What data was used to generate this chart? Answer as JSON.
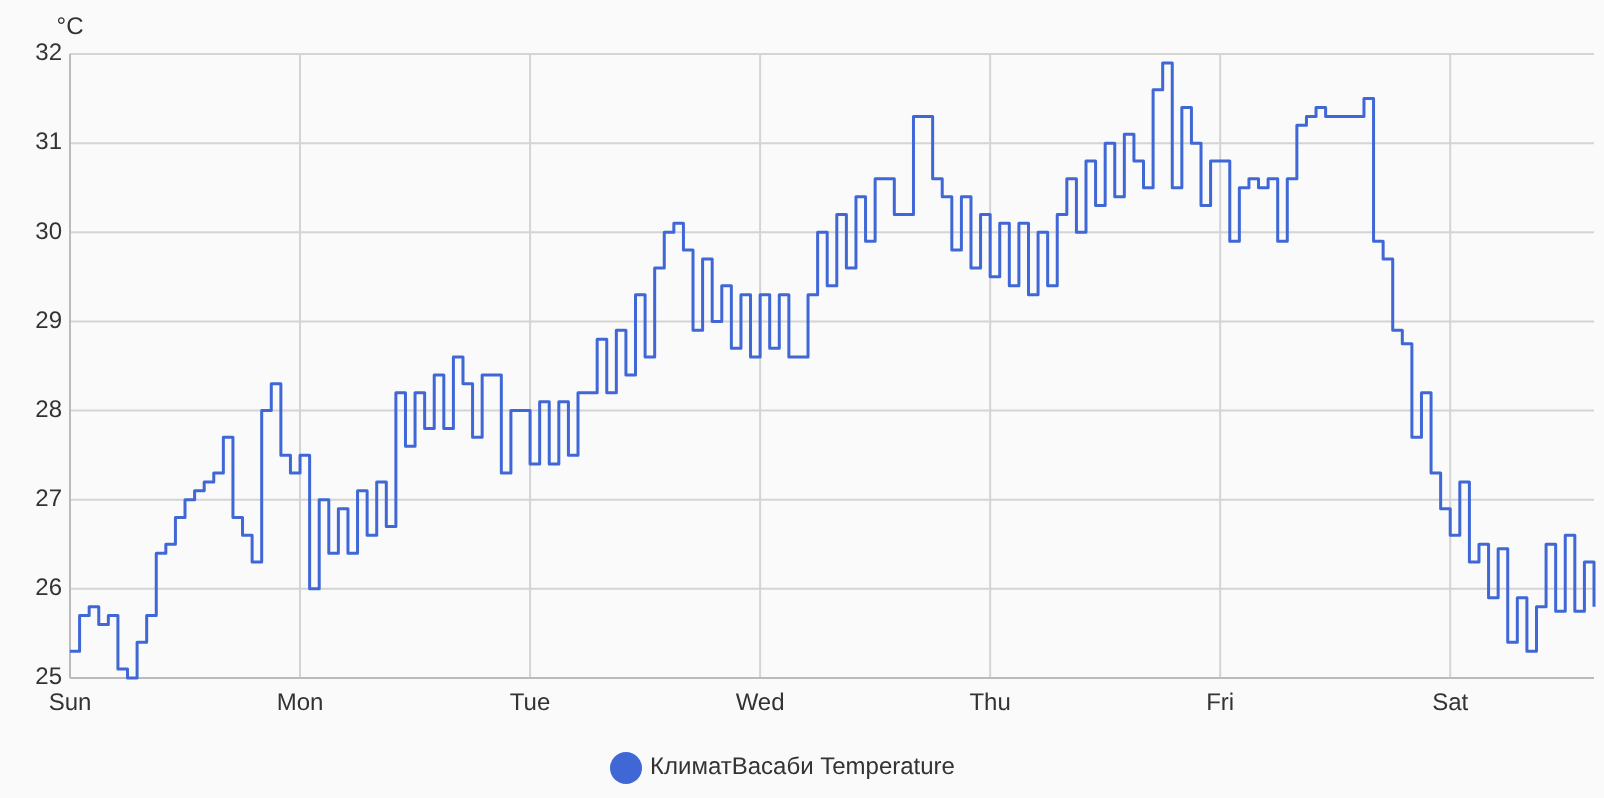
{
  "chart_data": {
    "type": "step",
    "ylabel": "°C",
    "legend": "bottom",
    "grid": true,
    "marker": "none",
    "line_style": "solid",
    "categories": [
      "Sun",
      null,
      null,
      null,
      null,
      null,
      null,
      null,
      null,
      null,
      null,
      null,
      null,
      null,
      null,
      null,
      null,
      null,
      null,
      null,
      null,
      null,
      null,
      null,
      "Mon",
      null,
      null,
      null,
      null,
      null,
      null,
      null,
      null,
      null,
      null,
      null,
      null,
      null,
      null,
      null,
      null,
      null,
      null,
      null,
      null,
      null,
      null,
      null,
      "Tue",
      null,
      null,
      null,
      null,
      null,
      null,
      null,
      null,
      null,
      null,
      null,
      null,
      null,
      null,
      null,
      null,
      null,
      null,
      null,
      null,
      null,
      null,
      null,
      "Wed",
      null,
      null,
      null,
      null,
      null,
      null,
      null,
      null,
      null,
      null,
      null,
      null,
      null,
      null,
      null,
      null,
      null,
      null,
      null,
      null,
      null,
      null,
      null,
      "Thu",
      null,
      null,
      null,
      null,
      null,
      null,
      null,
      null,
      null,
      null,
      null,
      null,
      null,
      null,
      null,
      null,
      null,
      null,
      null,
      null,
      null,
      null,
      null,
      "Fri",
      null,
      null,
      null,
      null,
      null,
      null,
      null,
      null,
      null,
      null,
      null,
      null,
      null,
      null,
      null,
      null,
      null,
      null,
      null,
      null,
      null,
      null,
      null,
      "Sat",
      null,
      null,
      null,
      null,
      null,
      null,
      null,
      null,
      null,
      null,
      null,
      null,
      null,
      null,
      null
    ],
    "ylim": [
      25,
      32
    ],
    "yticks": [
      25,
      26,
      27,
      28,
      29,
      30,
      31,
      32
    ],
    "series": [
      {
        "name": "КлиматВасаби Temperature",
        "color": "#3f67d6",
        "values": [
          25.3,
          25.7,
          25.8,
          25.6,
          25.7,
          25.1,
          25.0,
          25.4,
          25.7,
          26.4,
          26.5,
          26.8,
          27.0,
          27.1,
          27.2,
          27.3,
          27.7,
          26.8,
          26.6,
          26.3,
          28.0,
          28.3,
          27.5,
          27.3,
          27.5,
          26.0,
          27.0,
          26.4,
          26.9,
          26.4,
          27.1,
          26.6,
          27.2,
          26.7,
          28.2,
          27.6,
          28.2,
          27.8,
          28.4,
          27.8,
          28.6,
          28.3,
          27.7,
          28.4,
          28.4,
          27.3,
          28.0,
          28.0,
          27.4,
          28.1,
          27.4,
          28.1,
          27.5,
          28.2,
          28.2,
          28.8,
          28.2,
          28.9,
          28.4,
          29.3,
          28.6,
          29.6,
          30.0,
          30.1,
          29.8,
          28.9,
          29.7,
          29.0,
          29.4,
          28.7,
          29.3,
          28.6,
          29.3,
          28.7,
          29.3,
          28.6,
          28.6,
          29.3,
          30.0,
          29.4,
          30.2,
          29.6,
          30.4,
          29.9,
          30.6,
          30.6,
          30.2,
          30.2,
          31.3,
          31.3,
          30.6,
          30.4,
          29.8,
          30.4,
          29.6,
          30.2,
          29.5,
          30.1,
          29.4,
          30.1,
          29.3,
          30.0,
          29.4,
          30.2,
          30.6,
          30.0,
          30.8,
          30.3,
          31.0,
          30.4,
          31.1,
          30.8,
          30.5,
          31.6,
          31.9,
          30.5,
          31.4,
          31.0,
          30.3,
          30.8,
          30.8,
          29.9,
          30.5,
          30.6,
          30.5,
          30.6,
          29.9,
          30.6,
          31.2,
          31.3,
          31.4,
          31.3,
          31.3,
          31.3,
          31.3,
          31.5,
          29.9,
          29.7,
          28.9,
          28.75,
          27.7,
          28.2,
          27.3,
          26.9,
          26.6,
          27.2,
          26.3,
          26.5,
          25.9,
          26.45,
          25.4,
          25.9,
          25.3,
          25.8,
          26.5,
          25.75,
          26.6,
          25.75,
          26.3,
          25.8
        ]
      }
    ]
  }
}
